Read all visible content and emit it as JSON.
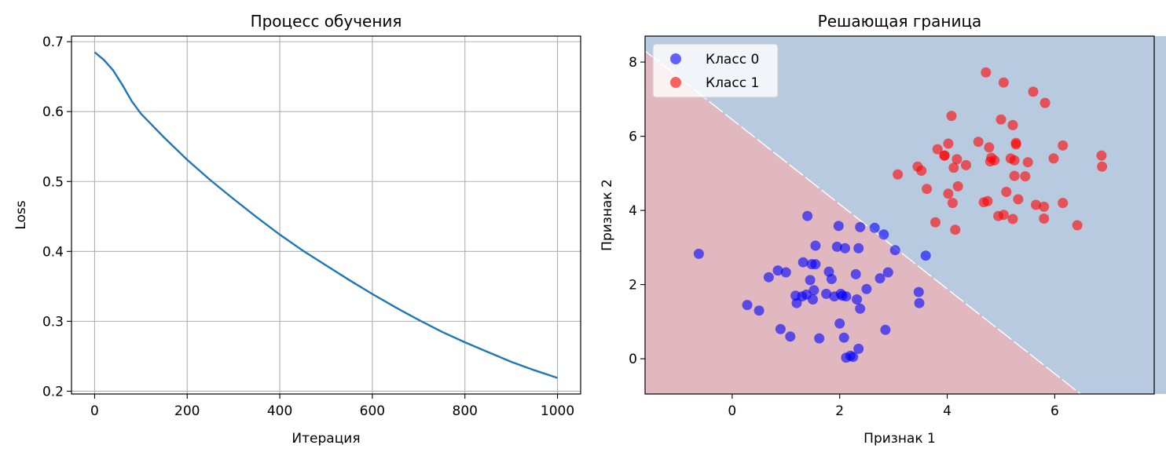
{
  "chart_data": [
    {
      "type": "line",
      "title": "Процесс обучения",
      "xlabel": "Итерация",
      "ylabel": "Loss",
      "xlim": [
        -50,
        1050
      ],
      "ylim": [
        0.196,
        0.708
      ],
      "grid": true,
      "x_ticks": [
        0,
        200,
        400,
        600,
        800,
        1000
      ],
      "y_ticks": [
        0.2,
        0.3,
        0.4,
        0.5,
        0.6,
        0.7
      ],
      "color": "#1f77b4",
      "series": [
        {
          "x": [
            0,
            20,
            40,
            60,
            80,
            100,
            150,
            200,
            250,
            300,
            350,
            400,
            450,
            500,
            550,
            600,
            650,
            700,
            750,
            800,
            850,
            900,
            950,
            1000
          ],
          "values": [
            0.685,
            0.674,
            0.659,
            0.638,
            0.615,
            0.597,
            0.563,
            0.531,
            0.502,
            0.475,
            0.449,
            0.424,
            0.401,
            0.38,
            0.359,
            0.339,
            0.32,
            0.302,
            0.285,
            0.27,
            0.256,
            0.242,
            0.23,
            0.219
          ]
        }
      ]
    },
    {
      "type": "scatter",
      "title": "Решающая граница",
      "xlabel": "Признак 1",
      "ylabel": "Признак 2",
      "xlim": [
        -1.62,
        7.85
      ],
      "ylim": [
        -0.95,
        8.7
      ],
      "grid": false,
      "x_ticks": [
        0,
        2,
        4,
        6
      ],
      "y_ticks": [
        0,
        2,
        4,
        6,
        8
      ],
      "legend_position": "upper-left",
      "region_colors": {
        "class0": "#b8cadf",
        "class1": "#e1b8bf",
        "boundary": "#ffffff"
      },
      "boundary": {
        "x": [
          -1.62,
          6.48
        ],
        "y": [
          8.3,
          -0.95
        ]
      },
      "series": [
        {
          "name": "Класс 0",
          "color": "#0000ff",
          "points": [
            [
              -0.62,
              2.83
            ],
            [
              0.28,
              1.45
            ],
            [
              0.5,
              1.3
            ],
            [
              0.68,
              2.2
            ],
            [
              0.85,
              2.38
            ],
            [
              0.9,
              0.8
            ],
            [
              1.0,
              2.33
            ],
            [
              1.08,
              0.6
            ],
            [
              1.18,
              1.7
            ],
            [
              1.2,
              1.5
            ],
            [
              1.3,
              1.68
            ],
            [
              1.32,
              2.6
            ],
            [
              1.38,
              1.73
            ],
            [
              1.4,
              3.85
            ],
            [
              1.45,
              2.12
            ],
            [
              1.48,
              2.55
            ],
            [
              1.5,
              1.6
            ],
            [
              1.52,
              1.85
            ],
            [
              1.55,
              3.05
            ],
            [
              1.55,
              2.55
            ],
            [
              1.62,
              0.55
            ],
            [
              1.75,
              1.75
            ],
            [
              1.8,
              2.35
            ],
            [
              1.85,
              2.15
            ],
            [
              1.9,
              1.68
            ],
            [
              1.95,
              3.02
            ],
            [
              1.98,
              3.58
            ],
            [
              2.0,
              0.95
            ],
            [
              2.02,
              1.75
            ],
            [
              2.05,
              1.7
            ],
            [
              2.08,
              0.57
            ],
            [
              2.1,
              2.98
            ],
            [
              2.12,
              1.68
            ],
            [
              2.12,
              0.03
            ],
            [
              2.2,
              0.08
            ],
            [
              2.25,
              0.05
            ],
            [
              2.3,
              2.28
            ],
            [
              2.32,
              1.6
            ],
            [
              2.35,
              0.27
            ],
            [
              2.35,
              2.98
            ],
            [
              2.38,
              1.35
            ],
            [
              2.38,
              3.55
            ],
            [
              2.5,
              1.88
            ],
            [
              2.65,
              3.53
            ],
            [
              2.75,
              2.17
            ],
            [
              2.82,
              3.35
            ],
            [
              2.85,
              0.78
            ],
            [
              2.9,
              2.33
            ],
            [
              3.03,
              2.93
            ],
            [
              3.47,
              1.8
            ],
            [
              3.48,
              1.5
            ],
            [
              3.6,
              2.78
            ]
          ]
        },
        {
          "name": "Класс 1",
          "color": "#ff0000",
          "points": [
            [
              3.08,
              4.97
            ],
            [
              3.45,
              5.18
            ],
            [
              3.52,
              5.07
            ],
            [
              3.62,
              4.58
            ],
            [
              3.78,
              3.68
            ],
            [
              3.82,
              5.65
            ],
            [
              3.95,
              5.48
            ],
            [
              3.95,
              5.48
            ],
            [
              4.02,
              4.45
            ],
            [
              4.02,
              5.8
            ],
            [
              4.08,
              6.55
            ],
            [
              4.1,
              4.2
            ],
            [
              4.12,
              5.15
            ],
            [
              4.15,
              3.48
            ],
            [
              4.18,
              5.38
            ],
            [
              4.2,
              4.65
            ],
            [
              4.35,
              5.22
            ],
            [
              4.58,
              5.85
            ],
            [
              4.68,
              4.22
            ],
            [
              4.72,
              7.72
            ],
            [
              4.75,
              4.25
            ],
            [
              4.78,
              5.7
            ],
            [
              4.8,
              5.32
            ],
            [
              4.82,
              5.42
            ],
            [
              4.88,
              5.35
            ],
            [
              4.95,
              3.85
            ],
            [
              5.0,
              6.45
            ],
            [
              5.05,
              7.45
            ],
            [
              5.05,
              3.88
            ],
            [
              5.1,
              4.5
            ],
            [
              5.18,
              5.4
            ],
            [
              5.22,
              6.3
            ],
            [
              5.22,
              3.77
            ],
            [
              5.25,
              4.93
            ],
            [
              5.25,
              5.35
            ],
            [
              5.28,
              5.78
            ],
            [
              5.28,
              5.82
            ],
            [
              5.32,
              4.3
            ],
            [
              5.45,
              4.92
            ],
            [
              5.5,
              5.3
            ],
            [
              5.6,
              7.2
            ],
            [
              5.65,
              4.15
            ],
            [
              5.8,
              3.78
            ],
            [
              5.8,
              4.1
            ],
            [
              5.82,
              6.9
            ],
            [
              5.98,
              5.4
            ],
            [
              6.15,
              5.75
            ],
            [
              6.15,
              4.2
            ],
            [
              6.42,
              3.6
            ],
            [
              6.87,
              5.48
            ],
            [
              6.88,
              5.18
            ]
          ]
        }
      ]
    }
  ]
}
